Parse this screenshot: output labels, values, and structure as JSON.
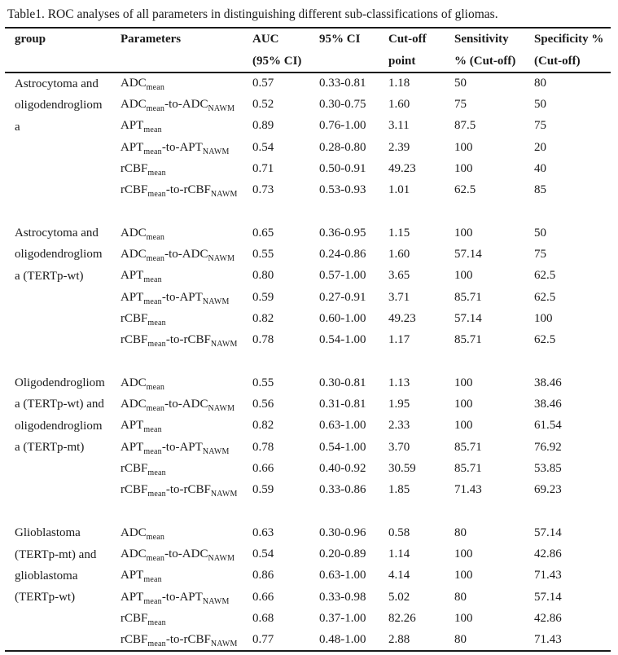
{
  "title": "Table1. ROC analyses of all parameters in distinguishing different sub-classifications of gliomas.",
  "table": {
    "columns": [
      {
        "id": "group",
        "line1": "group",
        "line2": ""
      },
      {
        "id": "parameters",
        "line1": "Parameters",
        "line2": ""
      },
      {
        "id": "auc",
        "line1": "AUC",
        "line2": "(95% CI)"
      },
      {
        "id": "ci",
        "line1": "95% CI",
        "line2": ""
      },
      {
        "id": "cutoff",
        "line1": "Cut-off",
        "line2": "point"
      },
      {
        "id": "sensitivity",
        "line1": "Sensitivity",
        "line2": "% (Cut-off)"
      },
      {
        "id": "specificity",
        "line1": "Specificity %",
        "line2": "(Cut-off)"
      }
    ],
    "groups": [
      {
        "label_lines": [
          "Astrocytoma and",
          "oligodendrogliom",
          "a"
        ],
        "rows": [
          {
            "parameter": "ADC~mean~",
            "auc": "0.57",
            "ci": "0.33-0.81",
            "cutoff": "1.18",
            "sensitivity": "50",
            "specificity": "80"
          },
          {
            "parameter": "ADC~mean~-to-ADC~NAWM~",
            "auc": "0.52",
            "ci": "0.30-0.75",
            "cutoff": "1.60",
            "sensitivity": "75",
            "specificity": "50"
          },
          {
            "parameter": "APT~mean~",
            "auc": "0.89",
            "ci": "0.76-1.00",
            "cutoff": "3.11",
            "sensitivity": "87.5",
            "specificity": "75"
          },
          {
            "parameter": "APT~mean~-to-APT~NAWM~",
            "auc": "0.54",
            "ci": "0.28-0.80",
            "cutoff": "2.39",
            "sensitivity": "100",
            "specificity": "20"
          },
          {
            "parameter": "rCBF~mean~",
            "auc": "0.71",
            "ci": "0.50-0.91",
            "cutoff": "49.23",
            "sensitivity": "100",
            "specificity": "40"
          },
          {
            "parameter": "rCBF~mean~-to-rCBF~NAWM~",
            "auc": "0.73",
            "ci": "0.53-0.93",
            "cutoff": "1.01",
            "sensitivity": "62.5",
            "specificity": "85"
          }
        ]
      },
      {
        "label_lines": [
          "Astrocytoma and",
          "oligodendrogliom",
          "a (TERTp-wt)"
        ],
        "rows": [
          {
            "parameter": "ADC~mean~",
            "auc": "0.65",
            "ci": "0.36-0.95",
            "cutoff": "1.15",
            "sensitivity": "100",
            "specificity": "50"
          },
          {
            "parameter": "ADC~mean~-to-ADC~NAWM~",
            "auc": "0.55",
            "ci": "0.24-0.86",
            "cutoff": "1.60",
            "sensitivity": "57.14",
            "specificity": "75"
          },
          {
            "parameter": "APT~mean~",
            "auc": "0.80",
            "ci": "0.57-1.00",
            "cutoff": "3.65",
            "sensitivity": "100",
            "specificity": "62.5"
          },
          {
            "parameter": "APT~mean~-to-APT~NAWM~",
            "auc": "0.59",
            "ci": "0.27-0.91",
            "cutoff": "3.71",
            "sensitivity": "85.71",
            "specificity": "62.5"
          },
          {
            "parameter": "rCBF~mean~",
            "auc": "0.82",
            "ci": "0.60-1.00",
            "cutoff": "49.23",
            "sensitivity": "57.14",
            "specificity": "100"
          },
          {
            "parameter": "rCBF~mean~-to-rCBF~NAWM~",
            "auc": "0.78",
            "ci": "0.54-1.00",
            "cutoff": "1.17",
            "sensitivity": "85.71",
            "specificity": "62.5"
          }
        ]
      },
      {
        "label_lines": [
          "Oligodendrogliom",
          "a (TERTp-wt) and",
          "oligodendrogliom",
          "a (TERTp-mt)"
        ],
        "rows": [
          {
            "parameter": "ADC~mean~",
            "auc": "0.55",
            "ci": "0.30-0.81",
            "cutoff": "1.13",
            "sensitivity": "100",
            "specificity": "38.46"
          },
          {
            "parameter": "ADC~mean~-to-ADC~NAWM~",
            "auc": "0.56",
            "ci": "0.31-0.81",
            "cutoff": "1.95",
            "sensitivity": "100",
            "specificity": "38.46"
          },
          {
            "parameter": "APT~mean~",
            "auc": "0.82",
            "ci": "0.63-1.00",
            "cutoff": "2.33",
            "sensitivity": "100",
            "specificity": "61.54"
          },
          {
            "parameter": "APT~mean~-to-APT~NAWM~",
            "auc": "0.78",
            "ci": "0.54-1.00",
            "cutoff": "3.70",
            "sensitivity": "85.71",
            "specificity": "76.92"
          },
          {
            "parameter": "rCBF~mean~",
            "auc": "0.66",
            "ci": "0.40-0.92",
            "cutoff": "30.59",
            "sensitivity": "85.71",
            "specificity": "53.85"
          },
          {
            "parameter": "rCBF~mean~-to-rCBF~NAWM~",
            "auc": "0.59",
            "ci": "0.33-0.86",
            "cutoff": "1.85",
            "sensitivity": "71.43",
            "specificity": "69.23"
          }
        ]
      },
      {
        "label_lines": [
          "Glioblastoma",
          "(TERTp-mt) and",
          "glioblastoma",
          "(TERTp-wt)"
        ],
        "rows": [
          {
            "parameter": "ADC~mean~",
            "auc": "0.63",
            "ci": "0.30-0.96",
            "cutoff": "0.58",
            "sensitivity": "80",
            "specificity": "57.14"
          },
          {
            "parameter": "ADC~mean~-to-ADC~NAWM~",
            "auc": "0.54",
            "ci": "0.20-0.89",
            "cutoff": "1.14",
            "sensitivity": "100",
            "specificity": "42.86"
          },
          {
            "parameter": "APT~mean~",
            "auc": "0.86",
            "ci": "0.63-1.00",
            "cutoff": "4.14",
            "sensitivity": "100",
            "specificity": "71.43"
          },
          {
            "parameter": "APT~mean~-to-APT~NAWM~",
            "auc": "0.66",
            "ci": "0.33-0.98",
            "cutoff": "5.02",
            "sensitivity": "80",
            "specificity": "57.14"
          },
          {
            "parameter": "rCBF~mean~",
            "auc": "0.68",
            "ci": "0.37-1.00",
            "cutoff": "82.26",
            "sensitivity": "100",
            "specificity": "42.86"
          },
          {
            "parameter": "rCBF~mean~-to-rCBF~NAWM~",
            "auc": "0.77",
            "ci": "0.48-1.00",
            "cutoff": "2.88",
            "sensitivity": "80",
            "specificity": "71.43"
          }
        ]
      }
    ]
  }
}
